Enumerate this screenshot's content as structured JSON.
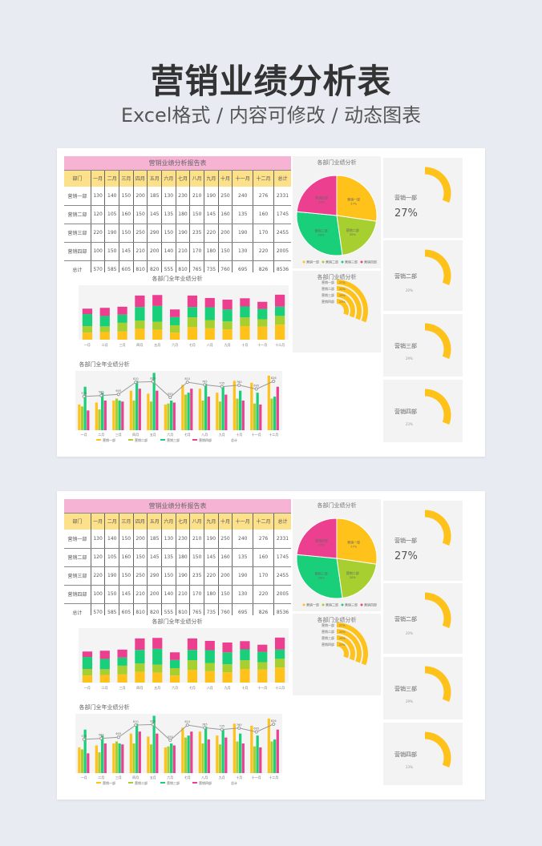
{
  "hero": {
    "title": "营销业绩分析表",
    "subtitle": "Excel格式 / 内容可修改 / 动态图表"
  },
  "report": {
    "title": "营销业绩分析报告表",
    "headers": [
      "部门",
      "一月",
      "二月",
      "三月",
      "四月",
      "五月",
      "六月",
      "七月",
      "八月",
      "九月",
      "十月",
      "十一月",
      "十二月",
      "总计"
    ],
    "rows": [
      {
        "dept": "营销一部",
        "values": [
          130,
          140,
          150,
          200,
          185,
          130,
          230,
          210,
          190,
          250,
          240,
          276
        ],
        "total": "2331"
      },
      {
        "dept": "营销二部",
        "values": [
          120,
          105,
          160,
          150,
          145,
          135,
          180,
          150,
          145,
          160,
          135,
          160
        ],
        "total": "1745"
      },
      {
        "dept": "营销三部",
        "values": [
          220,
          190,
          150,
          250,
          290,
          150,
          190,
          235,
          220,
          200,
          190,
          170
        ],
        "total": "2455"
      },
      {
        "dept": "营销四部",
        "values": [
          100,
          150,
          145,
          210,
          200,
          140,
          210,
          170,
          180,
          150,
          130,
          220
        ],
        "total": "2005"
      }
    ],
    "sum_row": {
      "label": "总计",
      "values": [
        570,
        585,
        605,
        810,
        820,
        555,
        810,
        765,
        735,
        760,
        695,
        826
      ],
      "total": "8536"
    }
  },
  "colors": {
    "d1": "#ffc21a",
    "d2": "#a6cf2f",
    "d3": "#19cf7a",
    "d4": "#ec3f90",
    "line": "#999999"
  },
  "stack_chart": {
    "title": "各部门全年业绩分析",
    "type": "bar",
    "ylim": [
      0,
      1000
    ]
  },
  "combo_chart": {
    "title": "各部门全年业绩分析",
    "type": "bar",
    "ylim": [
      0,
      300
    ],
    "y2lim": [
      0,
      1000
    ],
    "legend_line": "总计"
  },
  "pie": {
    "title": "各部门业绩分析",
    "labels": [
      "营销一部",
      "营销二部",
      "营销三部",
      "营销四部"
    ],
    "percents": [
      "27%",
      "20%",
      "29%",
      "23%"
    ]
  },
  "rings": {
    "title": "各部门业绩分析",
    "labels": [
      "营销一部",
      "营销二部",
      "营销三部",
      "营销四部"
    ],
    "percents": [
      "27%",
      "20%",
      "29%",
      "23%"
    ]
  },
  "gauges": [
    {
      "label": "营销一部",
      "percent": "27%",
      "value": 27
    },
    {
      "label": "营销二部",
      "percent": "20%",
      "value": 20
    },
    {
      "label": "营销三部",
      "percent": "29%",
      "value": 29
    },
    {
      "label": "营销四部",
      "percent": "23%",
      "value": 23
    }
  ],
  "chart_data": {
    "type": "bar",
    "categories": [
      "一月",
      "二月",
      "三月",
      "四月",
      "五月",
      "六月",
      "七月",
      "八月",
      "九月",
      "十月",
      "十一月",
      "十二月"
    ],
    "series": [
      {
        "name": "营销一部",
        "values": [
          130,
          140,
          150,
          200,
          185,
          130,
          230,
          210,
          190,
          250,
          240,
          276
        ]
      },
      {
        "name": "营销二部",
        "values": [
          120,
          105,
          160,
          150,
          145,
          135,
          180,
          150,
          145,
          160,
          135,
          160
        ]
      },
      {
        "name": "营销三部",
        "values": [
          220,
          190,
          150,
          250,
          290,
          150,
          190,
          235,
          220,
          200,
          190,
          170
        ]
      },
      {
        "name": "营销四部",
        "values": [
          100,
          150,
          145,
          210,
          200,
          140,
          210,
          170,
          180,
          150,
          130,
          220
        ]
      },
      {
        "name": "总计",
        "values": [
          570,
          585,
          605,
          810,
          820,
          555,
          810,
          765,
          735,
          760,
          695,
          826
        ]
      }
    ]
  }
}
